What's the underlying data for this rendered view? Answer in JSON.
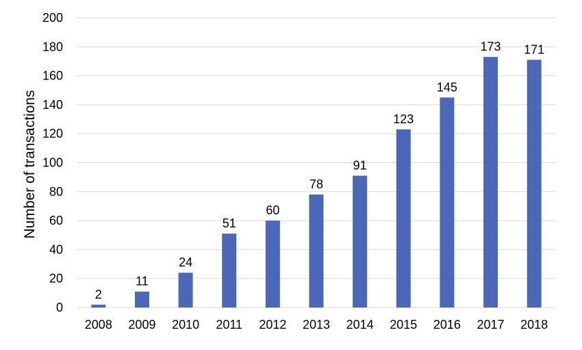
{
  "chart_data": {
    "type": "bar",
    "title": "",
    "xlabel": "",
    "ylabel": "Number of transactions",
    "categories": [
      "2008",
      "2009",
      "2010",
      "2011",
      "2012",
      "2013",
      "2014",
      "2015",
      "2016",
      "2017",
      "2018"
    ],
    "values": [
      2,
      11,
      24,
      51,
      60,
      78,
      91,
      123,
      145,
      173,
      171
    ],
    "data_labels": [
      "2",
      "11",
      "24",
      "51",
      "60",
      "78",
      "91",
      "123",
      "145",
      "173",
      "171"
    ],
    "ylim": [
      0,
      200
    ],
    "y_ticks": [
      0,
      20,
      40,
      60,
      80,
      100,
      120,
      140,
      160,
      180,
      200
    ],
    "grid": true,
    "legend": "none",
    "bar_color": "#4a67b8"
  }
}
